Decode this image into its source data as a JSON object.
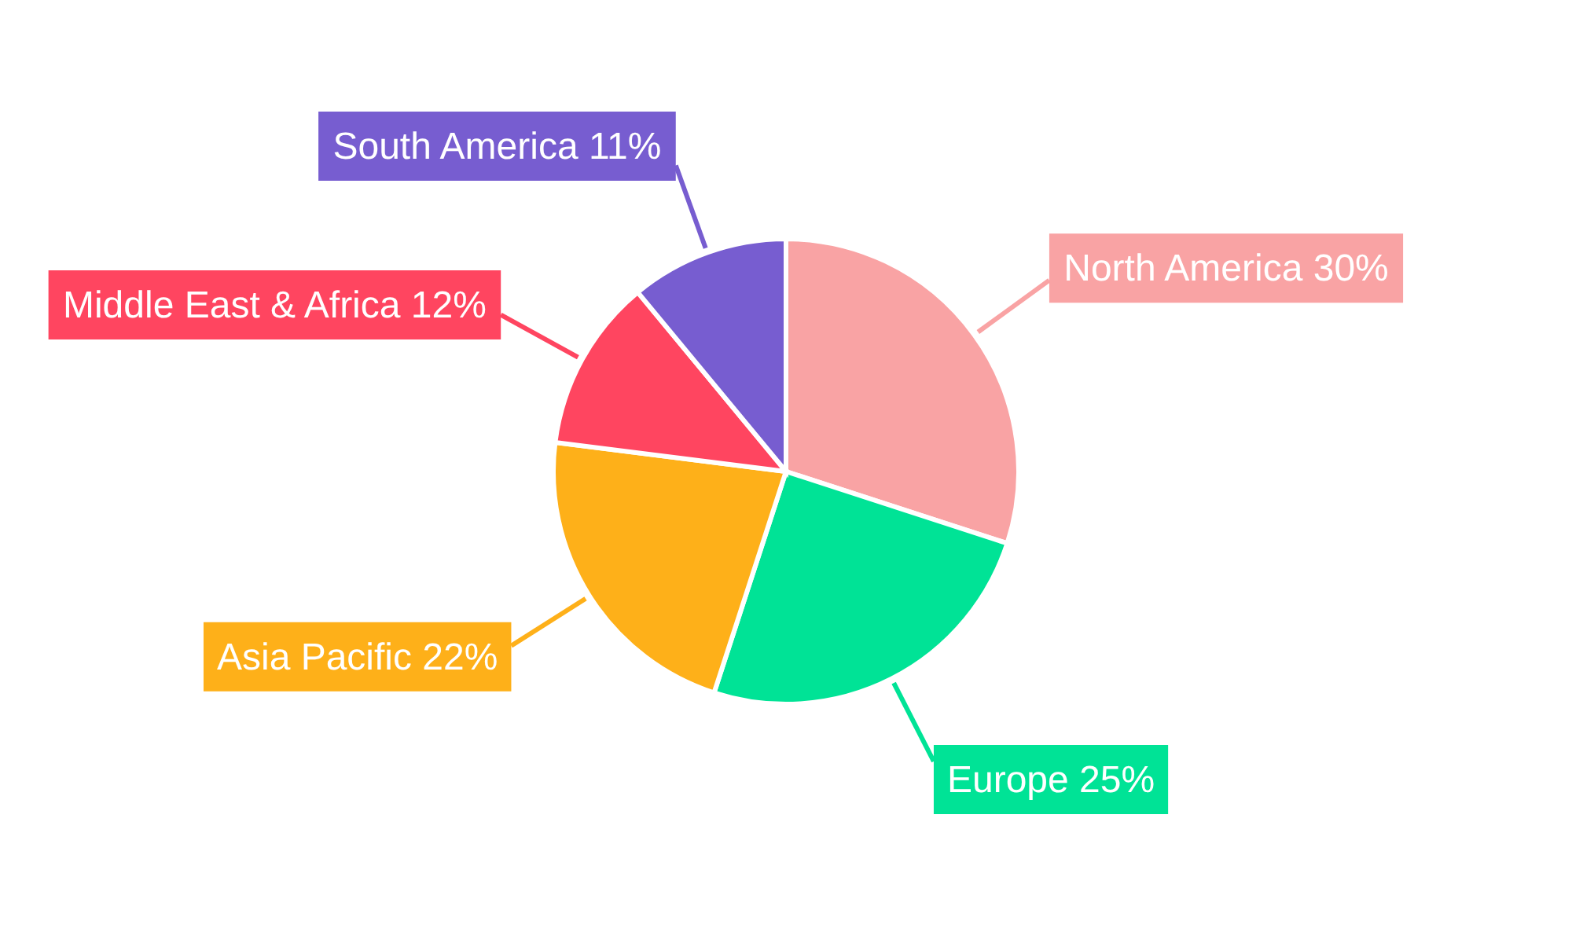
{
  "chart_data": {
    "type": "pie",
    "categories": [
      "North America",
      "Europe",
      "Asia Pacific",
      "Middle East & Africa",
      "South America"
    ],
    "values": [
      30,
      25,
      22,
      12,
      11
    ],
    "value_labels": [
      "30%",
      "25%",
      "22%",
      "12%",
      "11%"
    ],
    "colors": [
      "#f9a3a4",
      "#00e396",
      "#feb019",
      "#ff4560",
      "#775dd0"
    ]
  }
}
